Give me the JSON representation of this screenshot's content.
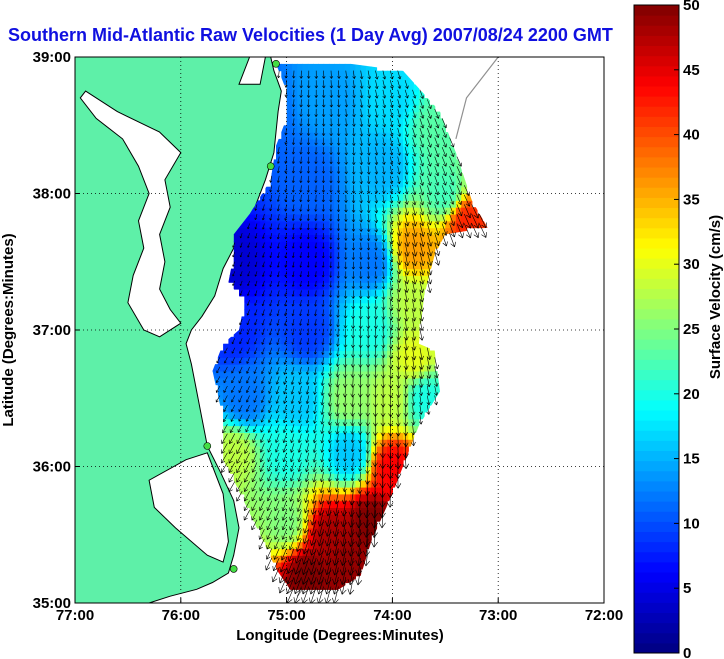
{
  "chart_data": {
    "type": "heatmap",
    "title": "Southern Mid-Atlantic Raw Velocities (1 Day Avg) 2007/08/24 2200 GMT",
    "xlabel": "Longitude (Degrees:Minutes)",
    "ylabel": "Latitude (Degrees:Minutes)",
    "colorbar_label": "Surface Velocity (cm/s)",
    "xlim": [
      -77,
      -72
    ],
    "ylim": [
      35,
      39
    ],
    "x_ticks": [
      {
        "value": -77,
        "label": "77:00"
      },
      {
        "value": -76,
        "label": "76:00"
      },
      {
        "value": -75,
        "label": "75:00"
      },
      {
        "value": -74,
        "label": "74:00"
      },
      {
        "value": -73,
        "label": "73:00"
      },
      {
        "value": -72,
        "label": "72:00"
      }
    ],
    "y_ticks": [
      {
        "value": 35,
        "label": "35:00"
      },
      {
        "value": 36,
        "label": "36:00"
      },
      {
        "value": 37,
        "label": "37:00"
      },
      {
        "value": 38,
        "label": "38:00"
      },
      {
        "value": 39,
        "label": "39:00"
      }
    ],
    "colorbar": {
      "min": 0,
      "max": 50,
      "ticks": [
        0,
        5,
        10,
        15,
        20,
        25,
        30,
        35,
        40,
        45,
        50
      ],
      "colormap": "jet"
    },
    "grid": true,
    "grid_style": "dotted",
    "colors": {
      "title": "#1010e0",
      "land": "#5ef0a8",
      "coast": "#000000",
      "isobath": "#909090",
      "station": "#44dd44"
    },
    "field_points": [
      {
        "lon": -75.3,
        "lat": 38.6,
        "v": 11
      },
      {
        "lon": -74.6,
        "lat": 38.7,
        "v": 14
      },
      {
        "lon": -74.0,
        "lat": 38.7,
        "v": 17
      },
      {
        "lon": -73.6,
        "lat": 38.5,
        "v": 23
      },
      {
        "lon": -75.6,
        "lat": 38.2,
        "v": 8
      },
      {
        "lon": -74.8,
        "lat": 38.1,
        "v": 11
      },
      {
        "lon": -74.1,
        "lat": 38.2,
        "v": 15
      },
      {
        "lon": -73.5,
        "lat": 38.0,
        "v": 22
      },
      {
        "lon": -73.3,
        "lat": 37.8,
        "v": 42
      },
      {
        "lon": -73.8,
        "lat": 37.6,
        "v": 36
      },
      {
        "lon": -75.5,
        "lat": 37.5,
        "v": 4
      },
      {
        "lon": -74.8,
        "lat": 37.5,
        "v": 6
      },
      {
        "lon": -74.2,
        "lat": 37.5,
        "v": 12
      },
      {
        "lon": -75.5,
        "lat": 37.0,
        "v": 8
      },
      {
        "lon": -74.8,
        "lat": 37.0,
        "v": 9
      },
      {
        "lon": -74.2,
        "lat": 37.0,
        "v": 20
      },
      {
        "lon": -73.8,
        "lat": 37.2,
        "v": 28
      },
      {
        "lon": -73.8,
        "lat": 36.8,
        "v": 30
      },
      {
        "lon": -75.4,
        "lat": 36.5,
        "v": 12
      },
      {
        "lon": -74.9,
        "lat": 36.5,
        "v": 16
      },
      {
        "lon": -74.4,
        "lat": 36.5,
        "v": 26
      },
      {
        "lon": -74.0,
        "lat": 36.5,
        "v": 28
      },
      {
        "lon": -73.7,
        "lat": 36.5,
        "v": 20
      },
      {
        "lon": -75.5,
        "lat": 36.1,
        "v": 28
      },
      {
        "lon": -75.0,
        "lat": 36.1,
        "v": 20
      },
      {
        "lon": -74.4,
        "lat": 36.1,
        "v": 16
      },
      {
        "lon": -74.0,
        "lat": 36.0,
        "v": 44
      },
      {
        "lon": -75.0,
        "lat": 35.6,
        "v": 25
      },
      {
        "lon": -74.6,
        "lat": 35.5,
        "v": 48
      },
      {
        "lon": -74.2,
        "lat": 35.6,
        "v": 50
      },
      {
        "lon": -74.8,
        "lat": 35.2,
        "v": 50
      },
      {
        "lon": -74.4,
        "lat": 35.3,
        "v": 49
      }
    ],
    "stations": [
      {
        "name": "",
        "lon": -75.1,
        "lat": 38.95
      },
      {
        "name": "",
        "lon": -75.15,
        "lat": 38.2
      },
      {
        "name": "",
        "lon": -75.75,
        "lat": 36.15
      },
      {
        "name": "",
        "lon": -75.5,
        "lat": 35.25
      }
    ]
  }
}
